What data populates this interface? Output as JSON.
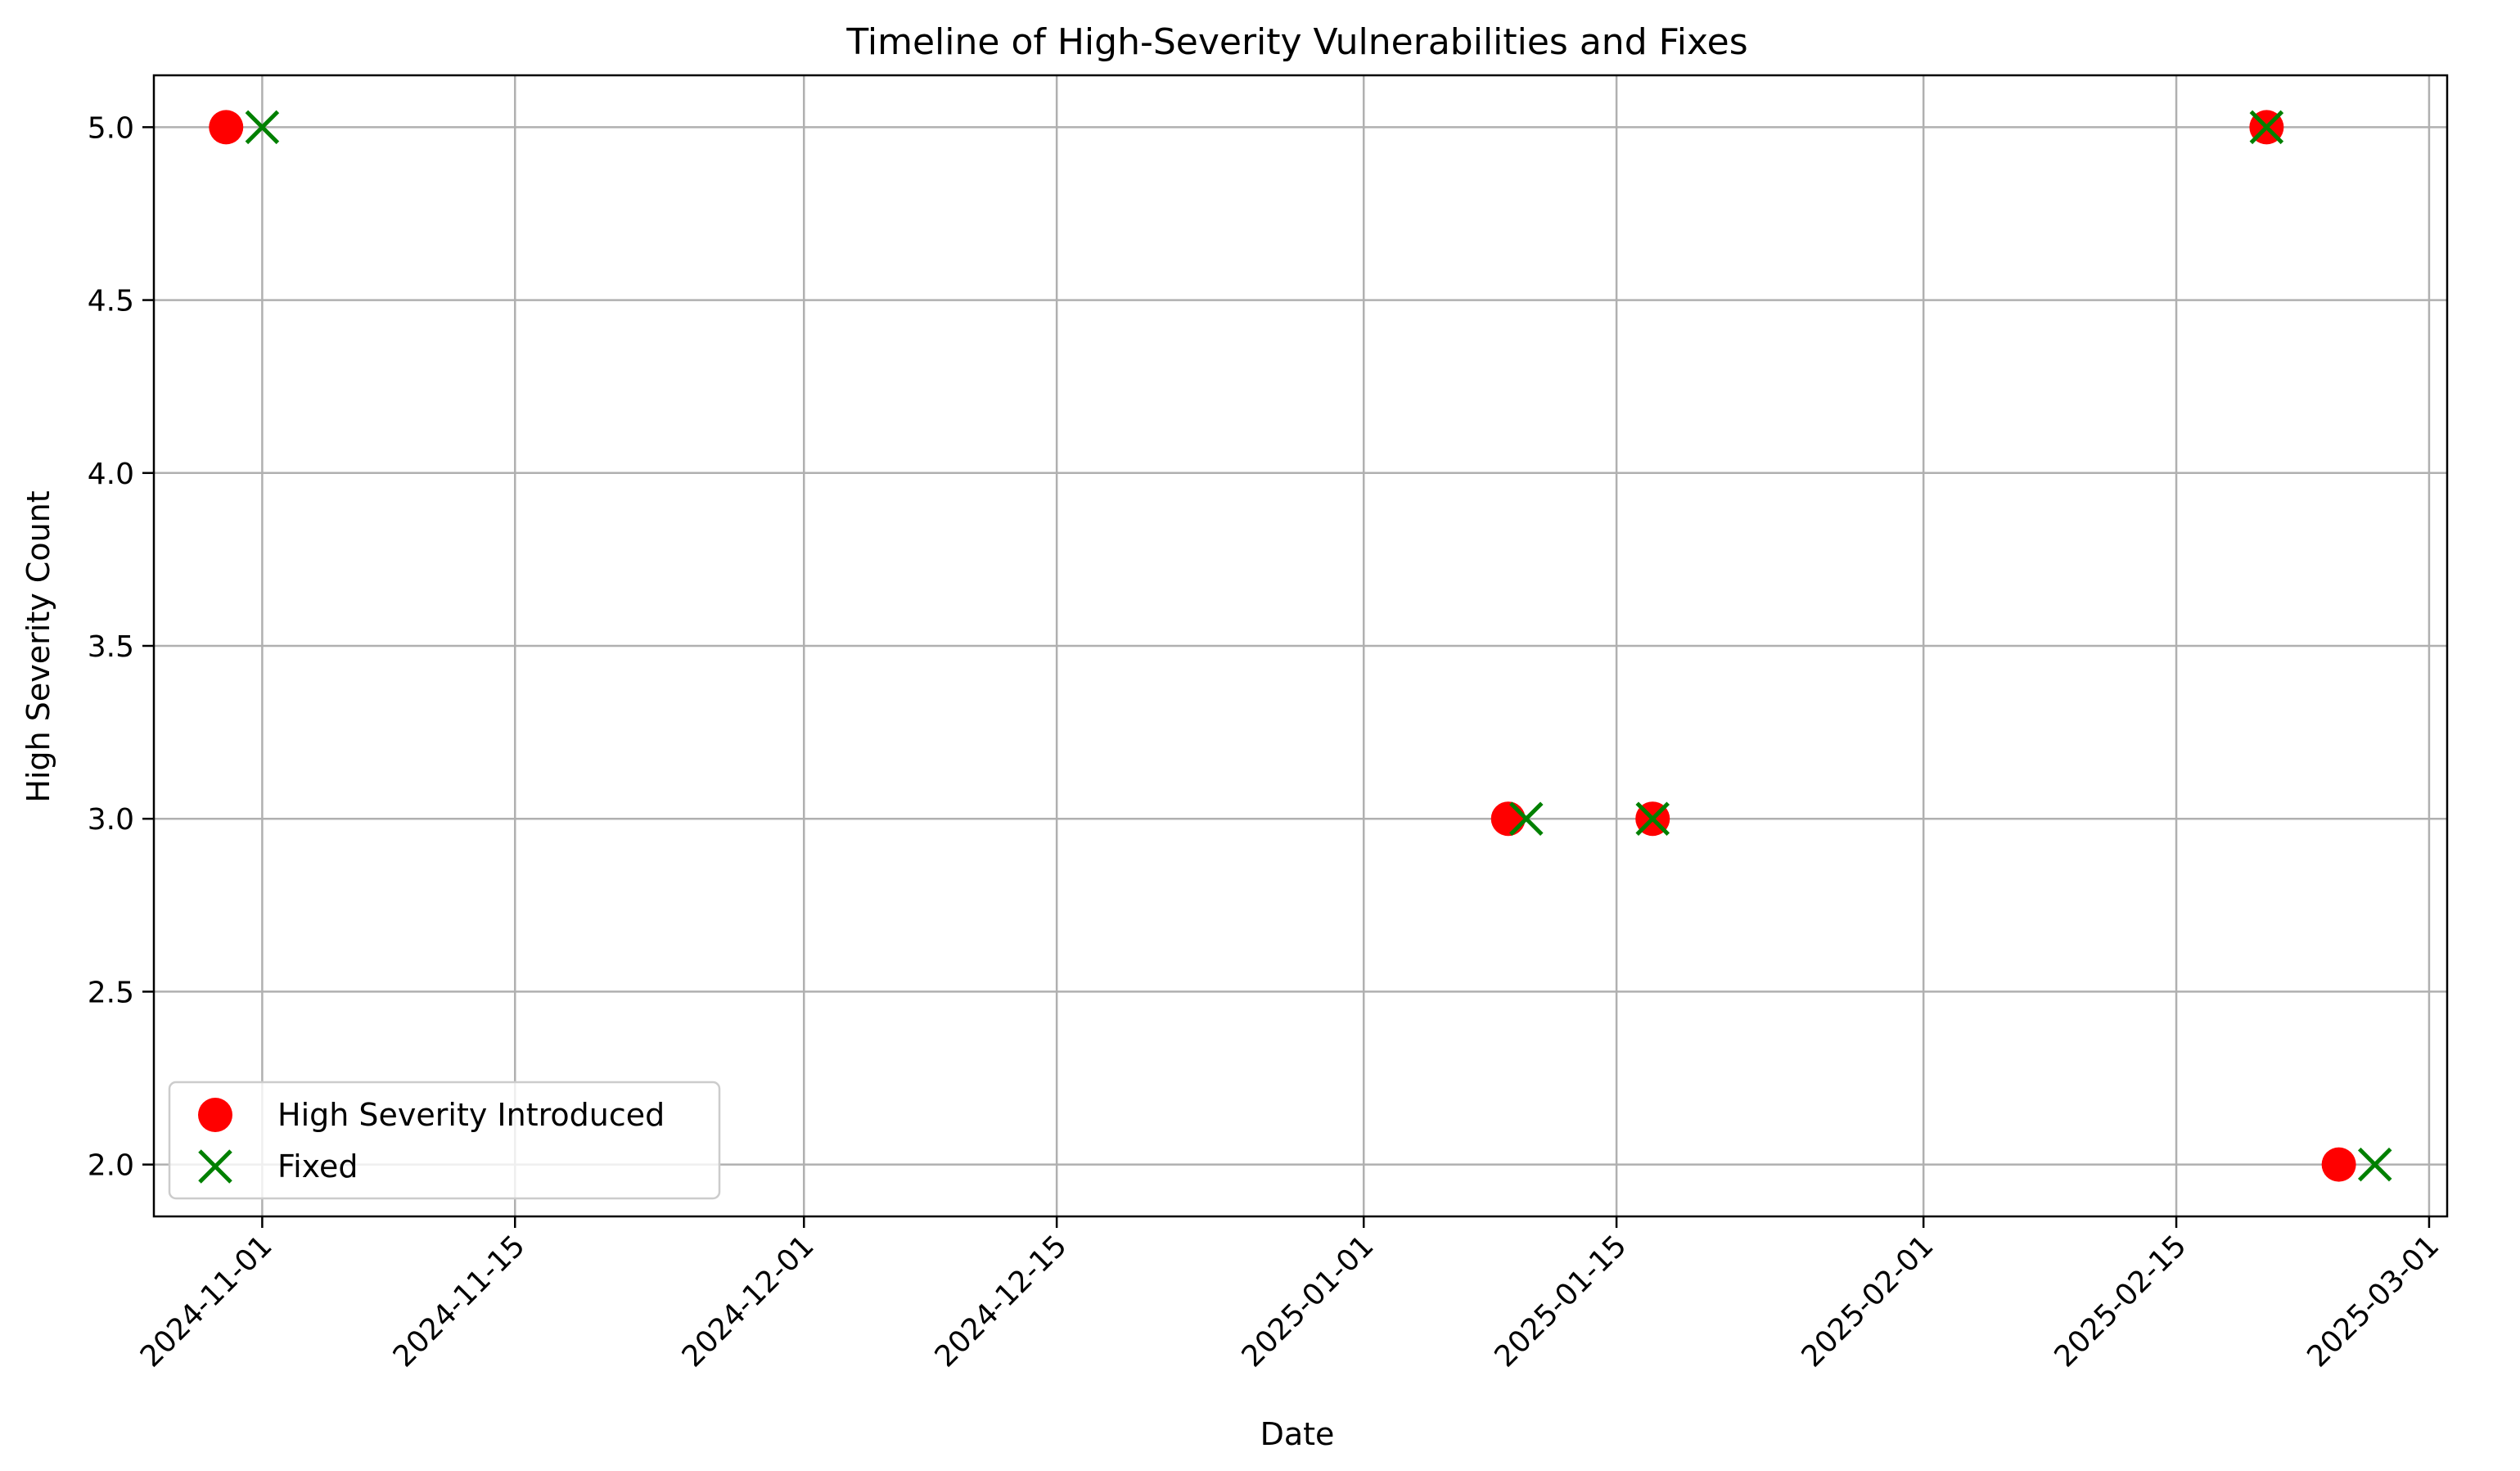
{
  "chart_data": {
    "type": "scatter",
    "title": "Timeline of High-Severity Vulnerabilities and Fixes",
    "xlabel": "Date",
    "ylabel": "High Severity Count",
    "x_axis_type": "date",
    "xlim": [
      "2024-10-26",
      "2025-03-02"
    ],
    "ylim": [
      1.85,
      5.15
    ],
    "x_ticks": [
      "2024-11-01",
      "2024-11-15",
      "2024-12-01",
      "2024-12-15",
      "2025-01-01",
      "2025-01-15",
      "2025-02-01",
      "2025-02-15",
      "2025-03-01"
    ],
    "y_ticks": [
      "2.0",
      "2.5",
      "3.0",
      "3.5",
      "4.0",
      "4.5",
      "5.0"
    ],
    "grid": true,
    "legend_position": "lower-left",
    "series": [
      {
        "name": "High Severity Introduced",
        "marker": "circle",
        "color": "#ff0000",
        "points": [
          {
            "x": "2024-10-30",
            "y": 5
          },
          {
            "x": "2025-01-09",
            "y": 3
          },
          {
            "x": "2025-01-17",
            "y": 3
          },
          {
            "x": "2025-02-20",
            "y": 5
          },
          {
            "x": "2025-02-24",
            "y": 2
          }
        ]
      },
      {
        "name": "Fixed",
        "marker": "x",
        "color": "#008000",
        "points": [
          {
            "x": "2024-11-01",
            "y": 5
          },
          {
            "x": "2025-01-10",
            "y": 3
          },
          {
            "x": "2025-01-17",
            "y": 3
          },
          {
            "x": "2025-02-20",
            "y": 5
          },
          {
            "x": "2025-02-26",
            "y": 2
          }
        ]
      }
    ]
  }
}
